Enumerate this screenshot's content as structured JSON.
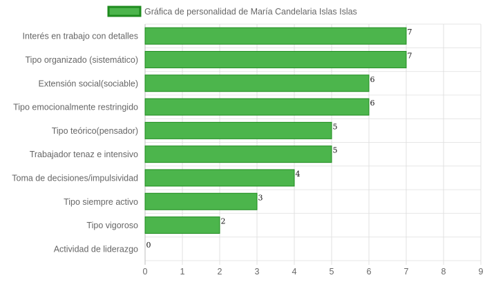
{
  "chart_data": {
    "type": "bar",
    "orientation": "horizontal",
    "title": "",
    "xlabel": "",
    "ylabel": "",
    "legend_position": "top-center",
    "grid": true,
    "xlim": [
      0,
      9
    ],
    "x_ticks": [
      "0",
      "1",
      "2",
      "3",
      "4",
      "5",
      "6",
      "7",
      "8",
      "9"
    ],
    "categories": [
      "Interés en trabajo con detalles",
      "Tipo organizado (sistemático)",
      "Extensión social(sociable)",
      "Tipo emocionalmente restringido",
      "Tipo teórico(pensador)",
      "Trabajador tenaz e intensivo",
      "Toma de decisiones/impulsividad",
      "Tipo siempre activo",
      "Tipo vigoroso",
      "Actividad de liderazgo"
    ],
    "series": [
      {
        "name": "Gráfica de personalidad de María Candelaria Islas Islas",
        "values": [
          7,
          7,
          6,
          6,
          5,
          5,
          4,
          3,
          2,
          0
        ],
        "color": "#4CB54C",
        "border_color": "#1E8B1E"
      }
    ]
  }
}
